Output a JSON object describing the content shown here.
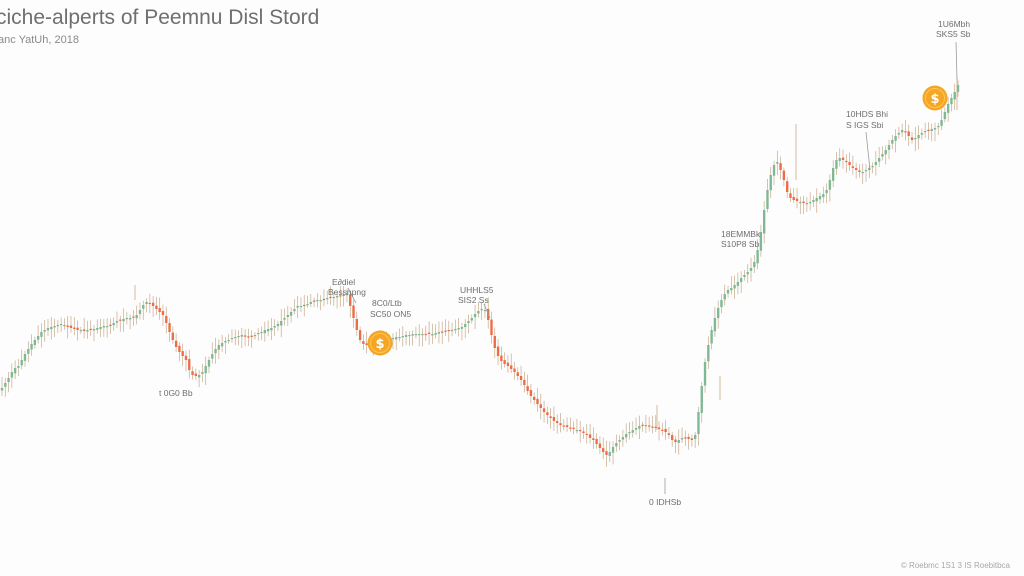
{
  "chart_data": {
    "type": "candlestick",
    "title": "ciche-alperts of Peemnu Disl Stord",
    "subtitle": "anc YatUh, 2018",
    "xlabel": "",
    "ylabel": "",
    "grid": false,
    "legend": "none",
    "colors": {
      "up": "#7fb894",
      "down": "#ee6b45",
      "wick": "#c7a98a",
      "coin": "#f5a623",
      "annotation_line": "#9a9a9a"
    },
    "values": [
      388,
      383,
      378,
      372,
      368,
      366,
      360,
      354,
      349,
      344,
      340,
      336,
      332,
      330,
      328,
      327,
      326,
      325,
      324,
      325,
      327,
      328,
      329,
      330,
      330,
      331,
      330,
      329,
      329,
      328,
      327,
      326,
      326,
      325,
      323,
      321,
      320,
      319,
      318,
      318,
      317,
      315,
      310,
      305,
      302,
      303,
      306,
      309,
      312,
      315,
      323,
      332,
      340,
      347,
      352,
      356,
      360,
      370,
      375,
      376,
      375,
      372,
      366,
      360,
      354,
      349,
      345,
      343,
      341,
      340,
      338,
      337,
      336,
      335,
      336,
      337,
      336,
      335,
      333,
      332,
      330,
      329,
      328,
      326,
      324,
      321,
      318,
      315,
      312,
      309,
      306,
      306,
      305,
      304,
      302,
      301,
      300,
      300,
      299,
      298,
      297,
      297,
      296,
      296,
      295,
      294,
      306,
      318,
      330,
      340,
      344,
      345,
      344,
      344,
      343,
      342,
      341,
      340,
      339,
      338,
      337,
      337,
      336,
      335,
      335,
      334,
      334,
      334,
      334,
      334,
      334,
      334,
      333,
      332,
      332,
      331,
      331,
      330,
      329,
      328,
      327,
      324,
      321,
      318,
      314,
      311,
      309,
      310,
      320,
      335,
      348,
      356,
      361,
      364,
      366,
      369,
      372,
      376,
      380,
      385,
      391,
      396,
      400,
      404,
      408,
      412,
      415,
      418,
      421,
      423,
      425,
      426,
      427,
      428,
      429,
      430,
      431,
      433,
      435,
      438,
      440,
      444,
      448,
      452,
      455,
      452,
      447,
      443,
      440,
      437,
      434,
      432,
      430,
      428,
      426,
      425,
      425,
      426,
      427,
      428,
      429,
      430,
      432,
      435,
      440,
      442,
      440,
      438,
      438,
      439,
      440,
      435,
      412,
      386,
      362,
      345,
      330,
      318,
      308,
      300,
      294,
      290,
      288,
      285,
      282,
      278,
      275,
      272,
      268,
      262,
      250,
      232,
      210,
      190,
      175,
      165,
      162,
      170,
      180,
      192,
      198,
      200,
      201,
      202,
      203,
      203,
      202,
      200,
      198,
      196,
      194,
      190,
      180,
      168,
      160,
      158,
      160,
      162,
      165,
      168,
      170,
      172,
      172,
      170,
      168,
      166,
      162,
      158,
      154,
      150,
      145,
      140,
      136,
      133,
      130,
      132,
      136,
      140,
      138,
      135,
      133,
      131,
      130,
      129,
      128,
      126,
      120,
      112,
      104,
      98,
      92,
      85
    ],
    "axis": {
      "ylim": [
        0,
        576
      ]
    },
    "annotations": [
      {
        "label_line1": "E∂diel",
        "label_line2": "Bessnpng"
      },
      {
        "label_line1": "8C0/Ltb",
        "label_line2": "SC50 ON5"
      },
      {
        "label_line1": "UHHLS5",
        "label_line2": "SIS2 Ss"
      },
      {
        "label_line1": "t 0G0 Bb",
        "label_line2": ""
      },
      {
        "label_line1": "0 IDHSb",
        "label_line2": ""
      },
      {
        "label_line1": "18EMMBk",
        "label_line2": "S10P8 Sb"
      },
      {
        "label_line1": "10HDS Bhi",
        "label_line2": "S IGS Sbi"
      },
      {
        "label_line1": "1U6Mbh",
        "label_line2": "SKS5 Sb"
      }
    ],
    "markers": [
      {
        "symbol": "$"
      },
      {
        "symbol": "$"
      }
    ],
    "footnote": "© Roebmc 1S1 3 IS   Roebitbca"
  }
}
